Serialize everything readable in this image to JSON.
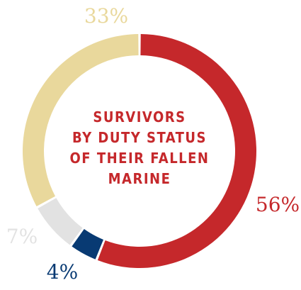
{
  "chart_data": {
    "type": "pie",
    "subtype": "donut",
    "title_lines": [
      "SURVIVORS",
      "BY DUTY STATUS",
      "OF THEIR FALLEN",
      "MARINE"
    ],
    "slices": [
      {
        "label": "56%",
        "value": 56,
        "color": "#c5282b"
      },
      {
        "label": "4%",
        "value": 4,
        "color": "#083a73"
      },
      {
        "label": "7%",
        "value": 7,
        "color": "#e2e2e2"
      },
      {
        "label": "33%",
        "value": 33,
        "color": "#e9d89c"
      }
    ],
    "title_color": "#c5282b",
    "legend": "none"
  }
}
